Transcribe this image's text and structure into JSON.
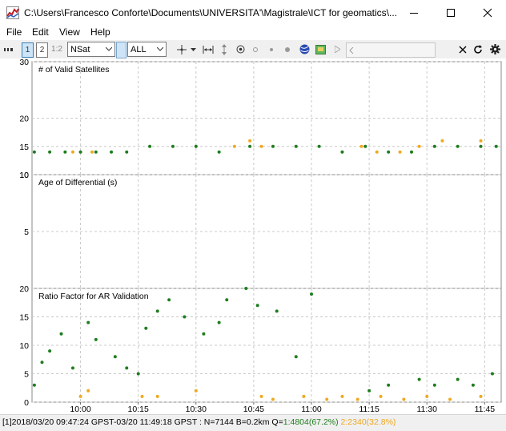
{
  "window": {
    "title": "C:\\Users\\Francesco Conforte\\Documents\\UNIVERSITA'\\Magistrale\\ICT for geomatics\\..."
  },
  "menu": {
    "items": [
      "File",
      "Edit",
      "View",
      "Help"
    ]
  },
  "toolbar": {
    "btn_1": "1",
    "btn_2": "2",
    "btn_12": "1:2",
    "plot_type": "NSat",
    "satellite": "ALL"
  },
  "colors": {
    "fix": "#1e7d1e",
    "float": "#f0a820",
    "grid": "#c8c8c8"
  },
  "chart_data": [
    {
      "type": "scatter",
      "title": "# of Valid Satellites",
      "ylim": [
        10,
        30
      ],
      "yticks": [
        30,
        20,
        15,
        10
      ],
      "yticklabels": [
        "30",
        "20",
        "15",
        "10"
      ],
      "series": [
        {
          "name": "Q=1",
          "x": [
            "09:48",
            "09:52",
            "09:56",
            "10:00",
            "10:04",
            "10:08",
            "10:12",
            "10:18",
            "10:24",
            "10:30",
            "10:36",
            "10:44",
            "10:50",
            "10:56",
            "11:02",
            "11:08",
            "11:14",
            "11:20",
            "11:26",
            "11:32",
            "11:38",
            "11:44",
            "11:48"
          ],
          "values": [
            14,
            14,
            14,
            14,
            14,
            14,
            14,
            15,
            15,
            15,
            14,
            15,
            15,
            15,
            15,
            14,
            15,
            14,
            14,
            15,
            15,
            15,
            15
          ]
        },
        {
          "name": "Q=2",
          "x": [
            "09:58",
            "10:03",
            "10:40",
            "10:44",
            "10:47",
            "11:13",
            "11:17",
            "11:23",
            "11:28",
            "11:34",
            "11:44"
          ],
          "values": [
            14,
            14,
            15,
            16,
            15,
            15,
            14,
            14,
            15,
            16,
            16
          ]
        }
      ]
    },
    {
      "type": "scatter",
      "title": "Age of Differential (s)",
      "ylim": [
        0,
        10
      ],
      "yticks": [
        10,
        5
      ],
      "yticklabels": [
        "10",
        "5"
      ],
      "series": []
    },
    {
      "type": "scatter",
      "title": "Ratio Factor for AR Validation",
      "ylim": [
        0,
        20
      ],
      "yticks": [
        20,
        15,
        10,
        5,
        0
      ],
      "yticklabels": [
        "20",
        "15",
        "10",
        "5",
        "0"
      ],
      "xticks": [
        "10:00",
        "10:15",
        "10:30",
        "10:45",
        "11:00",
        "11:15",
        "11:30",
        "11:45"
      ],
      "series": [
        {
          "name": "Q=1",
          "x": [
            "09:48",
            "09:50",
            "09:52",
            "09:55",
            "09:58",
            "10:02",
            "10:04",
            "10:09",
            "10:12",
            "10:15",
            "10:17",
            "10:20",
            "10:23",
            "10:27",
            "10:32",
            "10:36",
            "10:38",
            "10:43",
            "10:46",
            "10:51",
            "10:56",
            "11:00",
            "11:15",
            "11:20",
            "11:28",
            "11:32",
            "11:38",
            "11:42",
            "11:47"
          ],
          "values": [
            3,
            7,
            9,
            12,
            6,
            14,
            11,
            8,
            6,
            5,
            13,
            16,
            18,
            15,
            12,
            14,
            18,
            20,
            17,
            16,
            8,
            19,
            2,
            3,
            4,
            3,
            4,
            3,
            5
          ]
        },
        {
          "name": "Q=2",
          "x": [
            "10:00",
            "10:02",
            "10:16",
            "10:20",
            "10:30",
            "10:47",
            "10:50",
            "10:58",
            "11:04",
            "11:08",
            "11:12",
            "11:18",
            "11:24",
            "11:30",
            "11:36",
            "11:44"
          ],
          "values": [
            1,
            2,
            1,
            1,
            2,
            1,
            0.5,
            1,
            0.5,
            1,
            0.5,
            1,
            0.5,
            1,
            0.5,
            1
          ]
        }
      ]
    }
  ],
  "status": {
    "prefix": "[1]2018/03/20 09:47:24 GPST-03/20 11:49:18 GPST : N=7144 B=0.2km Q=",
    "q1": "1:4804(67.2%)",
    "q2": "2:2340(32.8%)"
  }
}
